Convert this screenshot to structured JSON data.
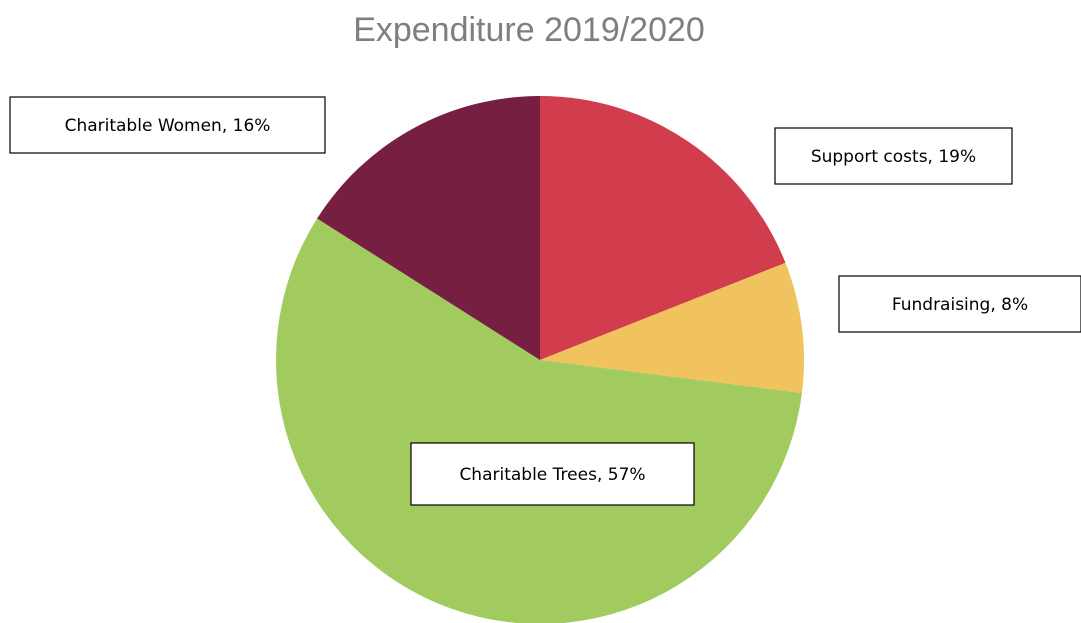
{
  "chart_data": {
    "type": "pie",
    "title": "Expenditure 2019/2020",
    "slices": [
      {
        "label": "Support costs, 19%",
        "name": "Support costs",
        "value": 19,
        "color": "#d13d4c"
      },
      {
        "label": "Fundraising, 8%",
        "name": "Fundraising",
        "value": 8,
        "color": "#f0c35f"
      },
      {
        "label": "Charitable Trees, 57%",
        "name": "Charitable Trees",
        "value": 57,
        "color": "#a1cb5f"
      },
      {
        "label": "Charitable Women, 16%",
        "name": "Charitable Women",
        "value": 16,
        "color": "#761f42"
      }
    ],
    "start_angle": "12 o'clock",
    "direction": "clockwise",
    "labels": "boxed data labels"
  }
}
